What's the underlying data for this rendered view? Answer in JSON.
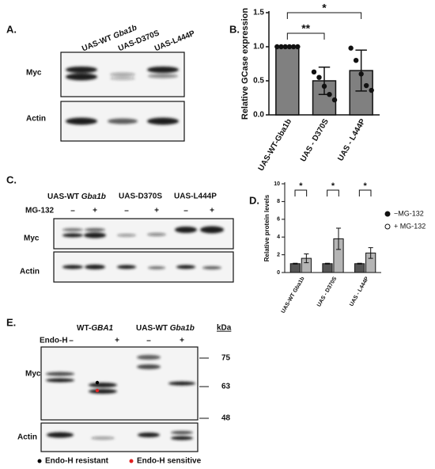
{
  "panel_a": {
    "label": "A.",
    "lanes": [
      [
        "UAS-WT ",
        "Gba1b"
      ],
      [
        "UAS-D370S"
      ],
      [
        "UAS-L444P"
      ]
    ],
    "rows": [
      "Myc",
      "Actin"
    ]
  },
  "chart_data": [
    {
      "type": "bar",
      "label": "B.",
      "ylabel": "Relative GCase expression",
      "categories": [
        "UAS-WT-Gba1b",
        "UAS - D370S",
        "UAS - L444P"
      ],
      "values": [
        1.0,
        0.5,
        0.65
      ],
      "errors": [
        0,
        0.2,
        0.3
      ],
      "color": "#808080",
      "points": [
        [
          1,
          1,
          1,
          1,
          1,
          1
        ],
        [
          0.63,
          0.55,
          0.42,
          0.3,
          0.22
        ],
        [
          0.98,
          0.8,
          0.6,
          0.43,
          0.36
        ]
      ],
      "ylim": [
        0,
        1.5
      ],
      "yticks": [
        {
          "value": 0,
          "label": "0.0"
        },
        0.5,
        {
          "value": 1,
          "label": "1.0"
        },
        1.5
      ],
      "annotations": [
        {
          "text": "**",
          "between": [
            "UAS-WT-Gba1b",
            "UAS - D370S"
          ]
        },
        {
          "text": "*",
          "between": [
            "UAS-WT-Gba1b",
            "UAS - L444P"
          ]
        }
      ]
    },
    {
      "type": "bar",
      "label": "D.",
      "ylabel": "Relative protein levels",
      "categories": [
        "UAS-WT Gba1b",
        "UAS - D370S",
        "UAS - L444P"
      ],
      "series": [
        {
          "name": "−MG-132",
          "color": "#555555",
          "values": [
            1,
            1,
            1
          ],
          "errors": [
            0.05,
            0.05,
            0.05
          ]
        },
        {
          "name": "+ MG-132",
          "color": "#b5b5b5",
          "values": [
            1.6,
            3.8,
            2.2
          ],
          "errors": [
            0.5,
            1.2,
            0.6
          ]
        }
      ],
      "ylim": [
        0,
        10
      ],
      "yticks": [
        0,
        2,
        4,
        6,
        8,
        10
      ],
      "legend": "right",
      "annotations": [
        {
          "text": "*",
          "between": [
            "UAS-WT Gba1b"
          ]
        },
        {
          "text": "*",
          "between": [
            "UAS - D370S"
          ]
        },
        {
          "text": "*",
          "between": [
            "UAS - L444P"
          ]
        }
      ]
    }
  ],
  "panel_c": {
    "label": "C.",
    "lanes": [
      [
        "UAS-WT ",
        "Gba1b"
      ],
      [
        "UAS-D370S"
      ],
      [
        "UAS-L444P"
      ]
    ],
    "treatment": "MG-132",
    "signs": [
      "–",
      "+",
      "–",
      "+",
      "–",
      "+"
    ],
    "rows": [
      "Myc",
      "Actin"
    ]
  },
  "panel_e": {
    "label": "E.",
    "lanes": [
      [
        "WT-",
        "GBA1"
      ],
      [
        "UAS-WT ",
        "Gba1b"
      ]
    ],
    "unit": "kDa",
    "treatment": "Endo-H",
    "signs": [
      "–",
      "+",
      "–",
      "+"
    ],
    "rows": [
      "Myc",
      "Actin"
    ],
    "markers": [
      "75",
      "63",
      "48"
    ],
    "legend": [
      "Endo-H resistant",
      "Endo-H sensitive"
    ]
  }
}
